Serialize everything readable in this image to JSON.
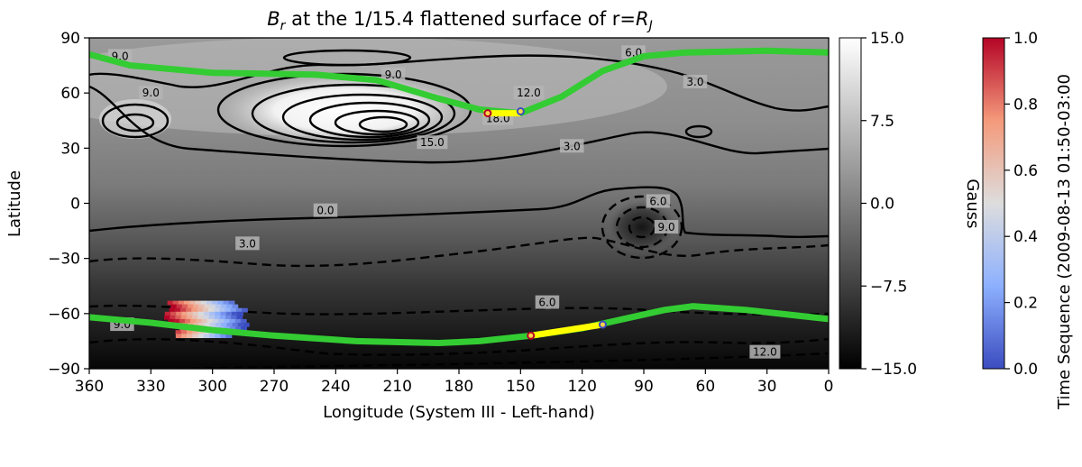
{
  "chart_data": {
    "type": "heatmap",
    "title_prefix": "B",
    "title_sub": "r",
    "title_main": " at the 1/15.4 flattened surface of r=",
    "title_end_prefix": "R",
    "title_end_sub": "J",
    "xlabel": "Longitude (System III - Left-hand)",
    "ylabel": "Latitude",
    "xlim": [
      360,
      0
    ],
    "ylim": [
      -90,
      90
    ],
    "xticks": [
      "360",
      "330",
      "300",
      "270",
      "240",
      "210",
      "180",
      "150",
      "120",
      "90",
      "60",
      "30",
      "0"
    ],
    "yticks": [
      "90",
      "60",
      "30",
      "0",
      "−30",
      "−60",
      "−90"
    ],
    "colorbar_gauss": {
      "label": "Gauss",
      "range": [
        -15,
        15
      ],
      "ticks": [
        "15.0",
        "7.5",
        "0.0",
        "−7.5",
        "−15.0"
      ]
    },
    "colorbar_time": {
      "label": "Time Sequence (2009-08-13 01:50-03:00",
      "range": [
        0,
        1
      ],
      "ticks": [
        "1.0",
        "0.8",
        "0.6",
        "0.4",
        "0.2",
        "0.0"
      ]
    },
    "contour_labels": [
      {
        "text": "9.0",
        "lon": 345,
        "lat": 80
      },
      {
        "text": "6.0",
        "lon": 95,
        "lat": 82
      },
      {
        "text": "9.0",
        "lon": 212,
        "lat": 70
      },
      {
        "text": "12.0",
        "lon": 146,
        "lat": 60
      },
      {
        "text": "3.0",
        "lon": 65,
        "lat": 66
      },
      {
        "text": "9.0",
        "lon": 330,
        "lat": 60
      },
      {
        "text": "18.0",
        "lon": 161,
        "lat": 46
      },
      {
        "text": "15.0",
        "lon": 193,
        "lat": 33
      },
      {
        "text": "3.0",
        "lon": 125,
        "lat": 31
      },
      {
        "text": "0.0",
        "lon": 245,
        "lat": -4
      },
      {
        "text": "6.0",
        "lon": 83,
        "lat": 1
      },
      {
        "text": "9.0",
        "lon": 79,
        "lat": -13
      },
      {
        "text": "3.0",
        "lon": 283,
        "lat": -22
      },
      {
        "text": "6.0",
        "lon": 137,
        "lat": -54
      },
      {
        "text": "9.0",
        "lon": 344,
        "lat": -66
      },
      {
        "text": "12.0",
        "lon": 31,
        "lat": -81
      }
    ],
    "footprint_north": [
      [
        360,
        81
      ],
      [
        340,
        75
      ],
      [
        300,
        71
      ],
      [
        250,
        70
      ],
      [
        220,
        67
      ],
      [
        190,
        57
      ],
      [
        170,
        51
      ],
      [
        150,
        49
      ],
      [
        130,
        58
      ],
      [
        110,
        72
      ],
      [
        90,
        80
      ],
      [
        70,
        82
      ],
      [
        30,
        83
      ],
      [
        0,
        82
      ]
    ],
    "footprint_south": [
      [
        360,
        -62
      ],
      [
        330,
        -65
      ],
      [
        300,
        -69
      ],
      [
        270,
        -72
      ],
      [
        230,
        -75
      ],
      [
        190,
        -76
      ],
      [
        170,
        -75
      ],
      [
        145,
        -72
      ],
      [
        120,
        -68
      ],
      [
        100,
        -63
      ],
      [
        80,
        -58
      ],
      [
        66,
        -56
      ],
      [
        40,
        -58
      ],
      [
        0,
        -63
      ]
    ],
    "trajectory_north": [
      [
        168,
        49
      ],
      [
        150,
        49
      ]
    ],
    "trajectory_south": [
      [
        145,
        -72
      ],
      [
        110,
        -66
      ]
    ],
    "trajectory_points": [
      {
        "lon": 166,
        "lat": 49,
        "t": 1.0
      },
      {
        "lon": 150,
        "lat": 50,
        "t": 0.0
      },
      {
        "lon": 145,
        "lat": -72,
        "t": 1.0
      },
      {
        "lon": 110,
        "lat": -66,
        "t": 0.0
      }
    ],
    "aurora_patch": {
      "lon_range": [
        322,
        284
      ],
      "lat_range": [
        -53,
        -73
      ]
    }
  }
}
